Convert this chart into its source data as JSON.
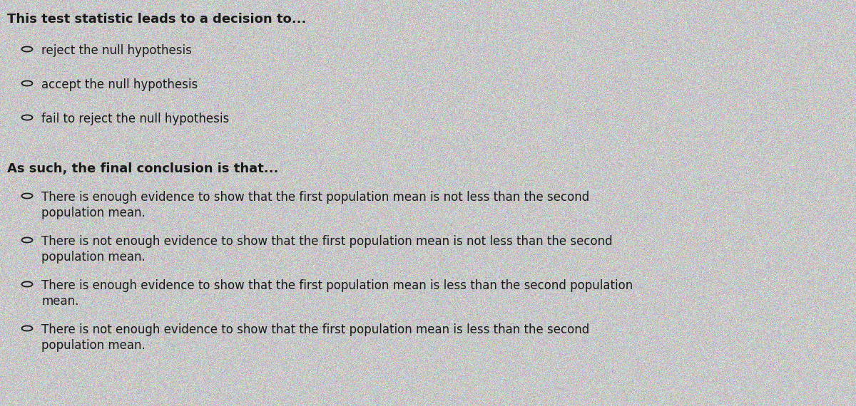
{
  "background_color": "#c8c8c8",
  "text_color": "#1a1a1a",
  "title1": "This test statistic leads to a decision to...",
  "title2": "As such, the final conclusion is that...",
  "options_section1": [
    "reject the null hypothesis",
    "accept the null hypothesis",
    "fail to reject the null hypothesis"
  ],
  "options_section2_line1": [
    "There is enough evidence to show that the first population mean is not less than the second",
    "There is not enough evidence to show that the first population mean is not less than the second",
    "There is enough evidence to show that the first population mean is less than the second population",
    "There is not enough evidence to show that the first population mean is less than the second"
  ],
  "options_section2_line2": [
    "population mean.",
    "population mean.",
    "mean.",
    "population mean."
  ],
  "title_fontsize": 13.0,
  "option_fontsize": 12.0,
  "figwidth": 12.0,
  "figheight": 5.7
}
